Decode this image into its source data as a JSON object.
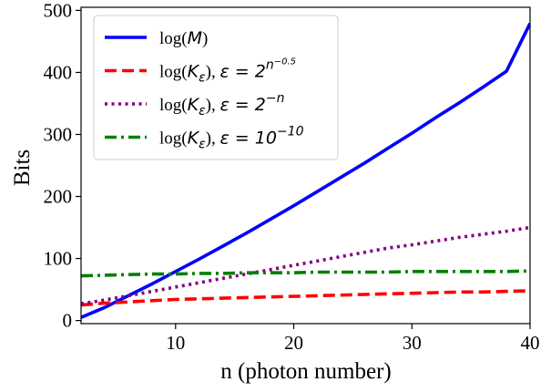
{
  "chart_data": {
    "type": "line",
    "title": "",
    "xlabel": "n (photon number)",
    "ylabel": "Bits",
    "xlim": [
      2,
      40
    ],
    "ylim": [
      -5,
      505
    ],
    "xticks": [
      10,
      20,
      30,
      40
    ],
    "yticks": [
      0,
      100,
      200,
      300,
      400,
      500
    ],
    "grid": false,
    "legend_position": "top-left",
    "x": [
      2,
      4,
      6,
      8,
      10,
      12,
      14,
      16,
      18,
      20,
      22,
      24,
      26,
      28,
      30,
      32,
      34,
      36,
      38,
      40
    ],
    "series": [
      {
        "name": "log(M)",
        "legend_parts": [
          "log(",
          "M",
          ")"
        ],
        "color": "#0000ff",
        "style": "solid",
        "values": [
          5,
          21,
          40,
          59,
          79,
          99,
          120,
          141,
          163,
          185,
          208,
          231,
          254,
          278,
          302,
          327,
          351,
          376,
          402,
          479
        ]
      },
      {
        "name": "log(Kε), ε = 2^(n^-0.5)",
        "legend_parts": [
          "log(",
          "K",
          "ε",
          "), ",
          "ε = 2",
          "n",
          "−0.5"
        ],
        "color": "#ff0000",
        "style": "dashed",
        "values": [
          25,
          28,
          30,
          32,
          34,
          35,
          36,
          37,
          38,
          39,
          40,
          41,
          42,
          43,
          44,
          45,
          46,
          46,
          47,
          48
        ]
      },
      {
        "name": "log(Kε), ε = 2^-n",
        "legend_parts": [
          "log(",
          "K",
          "ε",
          "), ",
          "ε = 2",
          "−n",
          ""
        ],
        "color": "#800080",
        "style": "dotted",
        "values": [
          27,
          33,
          40,
          47,
          54,
          61,
          68,
          75,
          82,
          89,
          96,
          103,
          110,
          117,
          122,
          128,
          134,
          139,
          144,
          150
        ]
      },
      {
        "name": "log(Kε), ε = 10^-10",
        "legend_parts": [
          "log(",
          "K",
          "ε",
          "), ",
          "ε = 10",
          "−10",
          ""
        ],
        "color": "#008000",
        "style": "dashdot",
        "values": [
          72,
          73,
          74,
          75,
          75,
          76,
          76,
          77,
          77,
          77,
          78,
          78,
          78,
          78,
          79,
          79,
          79,
          79,
          79,
          80
        ]
      }
    ]
  }
}
